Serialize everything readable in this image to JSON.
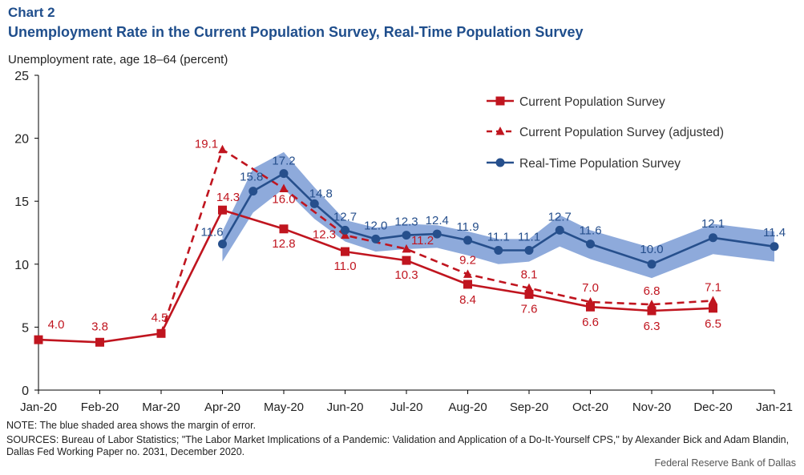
{
  "header": {
    "chart_number": "Chart 2",
    "title": "Unemployment Rate in the Current Population Survey, Real-Time Population Survey"
  },
  "colors": {
    "cps": "#c0151f",
    "rps": "#264f8c",
    "band": "#8eaadb",
    "axis": "#000000"
  },
  "chart_data": {
    "type": "line",
    "ylabel": "Unemployment rate, age 18–64 (percent)",
    "xlabel": "",
    "ylim": [
      0,
      25
    ],
    "yticks": [
      0,
      5,
      10,
      15,
      20,
      25
    ],
    "grid": false,
    "legend_position": "top-right",
    "x": [
      "Jan-20",
      "Feb-20",
      "Mar-20",
      "Apr-20",
      "May-20",
      "Jun-20",
      "Jul-20",
      "Aug-20",
      "Sep-20",
      "Oct-20",
      "Nov-20",
      "Dec-20",
      "Jan-21"
    ],
    "series": [
      {
        "name": "Current Population Survey",
        "style": "solid-square",
        "points": [
          {
            "x": "Jan-20",
            "y": 4.0,
            "label": "4.0"
          },
          {
            "x": "Feb-20",
            "y": 3.8,
            "label": "3.8"
          },
          {
            "x": "Mar-20",
            "y": 4.5,
            "label": "4.5"
          },
          {
            "x": "Apr-20",
            "y": 14.3,
            "label": "14.3"
          },
          {
            "x": "May-20",
            "y": 12.8,
            "label": "12.8"
          },
          {
            "x": "Jun-20",
            "y": 11.0,
            "label": "11.0"
          },
          {
            "x": "Jul-20",
            "y": 10.3,
            "label": "10.3"
          },
          {
            "x": "Aug-20",
            "y": 8.4,
            "label": "8.4"
          },
          {
            "x": "Sep-20",
            "y": 7.6,
            "label": "7.6"
          },
          {
            "x": "Oct-20",
            "y": 6.6,
            "label": "6.6"
          },
          {
            "x": "Nov-20",
            "y": 6.3,
            "label": "6.3"
          },
          {
            "x": "Dec-20",
            "y": 6.5,
            "label": "6.5"
          }
        ]
      },
      {
        "name": "Current Population Survey (adjusted)",
        "style": "dashed-triangle",
        "points": [
          {
            "x": "Mar-20",
            "y": 4.5,
            "label": ""
          },
          {
            "x": "Apr-20",
            "y": 19.1,
            "label": "19.1"
          },
          {
            "x": "May-20",
            "y": 16.0,
            "label": "16.0"
          },
          {
            "x": "Jun-20",
            "y": 12.3,
            "label": "12.3"
          },
          {
            "x": "Jul-20",
            "y": 11.2,
            "label": "11.2"
          },
          {
            "x": "Aug-20",
            "y": 9.2,
            "label": "9.2"
          },
          {
            "x": "Sep-20",
            "y": 8.1,
            "label": "8.1"
          },
          {
            "x": "Oct-20",
            "y": 7.0,
            "label": "7.0"
          },
          {
            "x": "Nov-20",
            "y": 6.8,
            "label": "6.8"
          },
          {
            "x": "Dec-20",
            "y": 7.1,
            "label": "7.1"
          }
        ]
      },
      {
        "name": "Real-Time Population Survey",
        "style": "solid-circle",
        "points": [
          {
            "x": 3.0,
            "y": 11.6,
            "label": "11.6"
          },
          {
            "x": 3.5,
            "y": 15.8,
            "label": "15.8"
          },
          {
            "x": 4.0,
            "y": 17.2,
            "label": "17.2"
          },
          {
            "x": 4.5,
            "y": 14.8,
            "label": "14.8"
          },
          {
            "x": 5.0,
            "y": 12.7,
            "label": "12.7"
          },
          {
            "x": 5.5,
            "y": 12.0,
            "label": "12.0"
          },
          {
            "x": 6.0,
            "y": 12.3,
            "label": "12.3"
          },
          {
            "x": 6.5,
            "y": 12.4,
            "label": "12.4"
          },
          {
            "x": 7.0,
            "y": 11.9,
            "label": "11.9"
          },
          {
            "x": 7.5,
            "y": 11.1,
            "label": "11.1"
          },
          {
            "x": 8.0,
            "y": 11.1,
            "label": "11.1"
          },
          {
            "x": 8.5,
            "y": 12.7,
            "label": "12.7"
          },
          {
            "x": 9.0,
            "y": 11.6,
            "label": "11.6"
          },
          {
            "x": 10.0,
            "y": 10.0,
            "label": "10.0"
          },
          {
            "x": 11.0,
            "y": 12.1,
            "label": "12.1"
          },
          {
            "x": 12.0,
            "y": 11.4,
            "label": "11.4"
          }
        ],
        "margin_of_error": {
          "lower": [
            10.2,
            14.1,
            16.0,
            13.6,
            11.8,
            11.0,
            11.2,
            11.3,
            10.7,
            10.0,
            10.2,
            11.4,
            10.4,
            8.9,
            10.8,
            10.2
          ],
          "upper": [
            12.6,
            17.6,
            18.9,
            16.1,
            13.5,
            12.9,
            13.2,
            13.1,
            12.6,
            12.0,
            12.0,
            13.9,
            12.7,
            11.3,
            13.2,
            12.6
          ]
        }
      }
    ]
  },
  "footer": {
    "note": "NOTE: The blue shaded area shows the margin of error.",
    "sources": "SOURCES: Bureau of Labor Statistics; \"The Labor Market Implications of a Pandemic: Validation and Application of a Do-It-Yourself CPS,\" by Alexander Bick and Adam Blandin, Dallas Fed Working Paper no. 2031, December 2020.",
    "credit": "Federal Reserve Bank of Dallas"
  }
}
